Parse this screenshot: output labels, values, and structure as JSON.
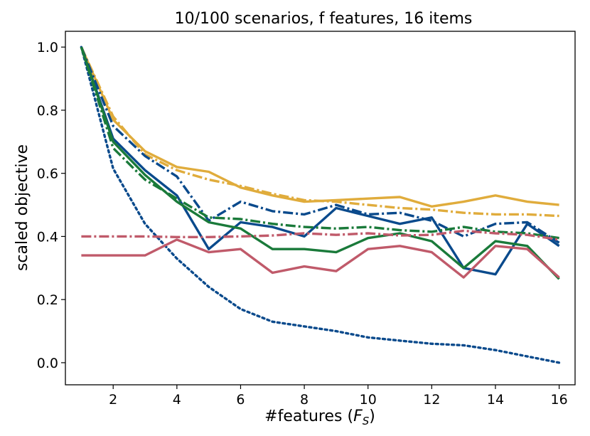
{
  "chart_data": {
    "type": "line",
    "title": "10/100 scenarios, f features, 16 items",
    "xlabel": "#features (",
    "xlabel_symbol": "F",
    "xlabel_subscript": "S",
    "xlabel_suffix": ")",
    "ylabel": "scaled objective",
    "xlim": [
      0.5,
      16.5
    ],
    "ylim": [
      -0.07,
      1.05
    ],
    "xticks": [
      2,
      4,
      6,
      8,
      10,
      12,
      14,
      16
    ],
    "yticks": [
      0.0,
      0.2,
      0.4,
      0.6,
      0.8,
      1.0
    ],
    "ytick_labels": [
      "0.0",
      "0.2",
      "0.4",
      "0.6",
      "0.8",
      "1.0"
    ],
    "x": [
      1,
      2,
      3,
      4,
      5,
      6,
      7,
      8,
      9,
      10,
      11,
      12,
      13,
      14,
      15,
      16
    ],
    "series": [
      {
        "name": "yellow-solid",
        "color": "#E0AC3C",
        "dash": "solid",
        "values": [
          1.0,
          0.77,
          0.67,
          0.62,
          0.605,
          0.555,
          0.53,
          0.51,
          0.515,
          0.52,
          0.525,
          0.495,
          0.51,
          0.53,
          0.51,
          0.5
        ]
      },
      {
        "name": "yellow-dashdot",
        "color": "#E0AC3C",
        "dash": "dashdot",
        "values": [
          1.0,
          0.78,
          0.66,
          0.61,
          0.58,
          0.56,
          0.535,
          0.515,
          0.51,
          0.5,
          0.49,
          0.485,
          0.475,
          0.47,
          0.47,
          0.465
        ]
      },
      {
        "name": "blue-dashdot",
        "color": "#0A4A8C",
        "dash": "dashdot",
        "values": [
          1.0,
          0.75,
          0.655,
          0.59,
          0.45,
          0.51,
          0.48,
          0.47,
          0.5,
          0.47,
          0.475,
          0.45,
          0.4,
          0.44,
          0.445,
          0.38
        ]
      },
      {
        "name": "blue-solid",
        "color": "#0A4A8C",
        "dash": "solid",
        "values": [
          1.0,
          0.71,
          0.61,
          0.53,
          0.36,
          0.445,
          0.43,
          0.4,
          0.49,
          0.465,
          0.44,
          0.46,
          0.3,
          0.28,
          0.44,
          0.37
        ]
      },
      {
        "name": "blue-dotted",
        "color": "#0A4A8C",
        "dash": "dotted",
        "values": [
          1.0,
          0.615,
          0.44,
          0.33,
          0.24,
          0.17,
          0.13,
          0.115,
          0.1,
          0.08,
          0.07,
          0.06,
          0.055,
          0.04,
          0.02,
          0.0
        ]
      },
      {
        "name": "green-dashdot",
        "color": "#1A7A3A",
        "dash": "dashdot",
        "values": [
          1.0,
          0.68,
          0.58,
          0.52,
          0.46,
          0.455,
          0.44,
          0.43,
          0.425,
          0.43,
          0.42,
          0.415,
          0.43,
          0.415,
          0.41,
          0.395
        ]
      },
      {
        "name": "green-solid",
        "color": "#1A7A3A",
        "dash": "solid",
        "values": [
          1.0,
          0.7,
          0.595,
          0.51,
          0.445,
          0.425,
          0.36,
          0.36,
          0.35,
          0.395,
          0.41,
          0.385,
          0.3,
          0.385,
          0.37,
          0.265
        ]
      },
      {
        "name": "red-dashdot",
        "color": "#C05A6A",
        "dash": "dashdot",
        "values": [
          0.4,
          0.4,
          0.4,
          0.398,
          0.398,
          0.4,
          0.403,
          0.41,
          0.405,
          0.41,
          0.403,
          0.405,
          0.418,
          0.41,
          0.405,
          0.39
        ]
      },
      {
        "name": "red-solid",
        "color": "#C05A6A",
        "dash": "solid",
        "values": [
          0.34,
          0.34,
          0.34,
          0.39,
          0.35,
          0.36,
          0.285,
          0.305,
          0.29,
          0.36,
          0.37,
          0.35,
          0.27,
          0.37,
          0.36,
          0.27
        ]
      }
    ]
  }
}
